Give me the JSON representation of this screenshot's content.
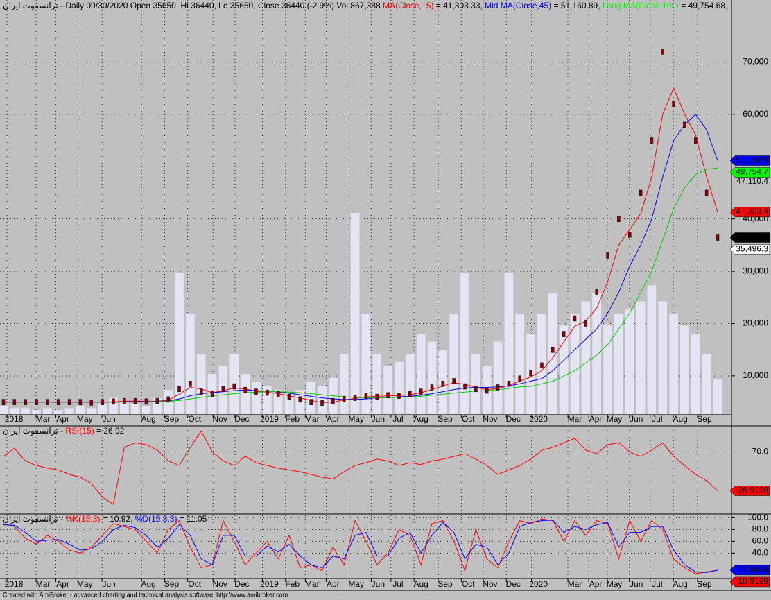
{
  "chart_data": [
    {
      "type": "line",
      "header": [
        {
          "text": "ترانسفوت ایران - Daily 09/30/2020 Open 35650, Hi 36440, Lo 35650, Close 36440 (-2.9%) Vol 867,388 ",
          "color": "#000000"
        },
        {
          "text": "MA(Close,15)",
          "color": "#ff0000"
        },
        {
          "text": " = 41,303.33, ",
          "color": "#000000"
        },
        {
          "text": "Mid MA(Close,45)",
          "color": "#0000ff"
        },
        {
          "text": " = 51,160.89, ",
          "color": "#000000"
        },
        {
          "text": "Long MA(Close,100)",
          "color": "#00ff00"
        },
        {
          "text": " = 49,754.68,",
          "color": "#000000"
        }
      ],
      "xticks": [
        {
          "value": 0.95,
          "label": "2018"
        },
        {
          "value": 3.6,
          "label": "Mar"
        },
        {
          "value": 5.4,
          "label": "Apr"
        },
        {
          "value": 7.4,
          "label": "May"
        },
        {
          "value": 9.6,
          "label": "Jun"
        },
        {
          "value": 13.2,
          "label": "Aug"
        },
        {
          "value": 15.3,
          "label": "Sep"
        },
        {
          "value": 17.4,
          "label": "Oct"
        },
        {
          "value": 19.7,
          "label": "Nov"
        },
        {
          "value": 21.7,
          "label": "Dec"
        },
        {
          "value": 24.2,
          "label": "2019"
        },
        {
          "value": 26.3,
          "label": "Feb"
        },
        {
          "value": 28.1,
          "label": "Mar"
        },
        {
          "value": 30.0,
          "label": "Apr"
        },
        {
          "value": 32.1,
          "label": "May"
        },
        {
          "value": 34.1,
          "label": "Jun"
        },
        {
          "value": 35.9,
          "label": "Jul"
        },
        {
          "value": 38.0,
          "label": "Aug"
        },
        {
          "value": 40.2,
          "label": "Sep"
        },
        {
          "value": 42.3,
          "label": "Oct"
        },
        {
          "value": 44.3,
          "label": "Nov"
        },
        {
          "value": 46.4,
          "label": "Dec"
        },
        {
          "value": 48.7,
          "label": "2020"
        },
        {
          "value": 52.0,
          "label": "Mar"
        },
        {
          "value": 53.9,
          "label": "Apr"
        },
        {
          "value": 55.6,
          "label": "May"
        },
        {
          "value": 57.6,
          "label": "Jun"
        },
        {
          "value": 59.5,
          "label": "Jul"
        },
        {
          "value": 61.6,
          "label": "Aug"
        },
        {
          "value": 63.8,
          "label": "Sep"
        }
      ],
      "xlim": [
        0,
        65
      ],
      "ylim": [
        2700,
        80000
      ],
      "yticks": [
        {
          "value": 10000,
          "label": "10,000"
        },
        {
          "value": 20000,
          "label": "20,000"
        },
        {
          "value": 30000,
          "label": "30,000"
        },
        {
          "value": 40000,
          "label": "40,000"
        },
        {
          "value": 60000,
          "label": "60,000"
        },
        {
          "value": 70000,
          "label": "70,000"
        }
      ],
      "levels": [
        {
          "value": 47110.4,
          "label": "47,110.4"
        },
        {
          "value": 35496.3,
          "label": "35,496.3"
        }
      ],
      "tags": [
        {
          "value": 51160.9,
          "label": "51,160.9",
          "color": "#0000ff"
        },
        {
          "value": 49754.7,
          "label": "49,754.7",
          "color": "#00ff00"
        },
        {
          "value": 41303.3,
          "label": "41,303.3",
          "color": "#ff0000"
        },
        {
          "value": 36440,
          "label": "36,440",
          "color": "#000000"
        },
        {
          "value": 35496.3,
          "label": "35,496.3",
          "color": "#ffffff"
        }
      ],
      "grid": true,
      "volume": {
        "color": "#e4e4f4",
        "values": [
          200000,
          150000,
          150000,
          100000,
          150000,
          100000,
          150000,
          200000,
          150000,
          250000,
          400000,
          300000,
          250000,
          200000,
          400000,
          600000,
          3500000,
          2500000,
          1500000,
          1000000,
          1200000,
          1500000,
          1000000,
          800000,
          700000,
          600000,
          500000,
          600000,
          800000,
          700000,
          900000,
          1500000,
          5000000,
          2500000,
          1500000,
          1200000,
          1300000,
          1500000,
          2000000,
          1800000,
          1600000,
          2500000,
          3500000,
          1500000,
          1200000,
          1800000,
          3500000,
          2500000,
          2000000,
          2500000,
          3000000,
          2200000,
          2500000,
          2800000,
          3000000,
          2200000,
          2500000,
          2600000,
          2800000,
          3200000,
          2800000,
          2500000,
          2200000,
          2000000,
          1500000,
          867388
        ]
      },
      "close": {
        "color": "#8b0000",
        "values": [
          5000,
          5000,
          5000,
          5000,
          5000,
          5000,
          5000,
          5000,
          4900,
          5000,
          5100,
          5200,
          5200,
          5100,
          5200,
          5500,
          7500,
          8500,
          7000,
          6500,
          7500,
          8000,
          7300,
          7000,
          6800,
          6500,
          6000,
          5500,
          5000,
          4800,
          5200,
          5600,
          5800,
          6200,
          6000,
          6300,
          6200,
          6500,
          7000,
          7800,
          8500,
          9000,
          8000,
          7500,
          7200,
          7800,
          8500,
          9500,
          10500,
          12000,
          15000,
          18000,
          21000,
          20000,
          26000,
          33000,
          40000,
          37000,
          45000,
          55000,
          72000,
          62000,
          58000,
          55000,
          45000,
          36440
        ]
      },
      "series": [
        {
          "name": "MA(Close,15)",
          "color": "#ff0000",
          "values": [
            5000,
            5000,
            5000,
            5000,
            5000,
            5000,
            5000,
            5000,
            4950,
            4980,
            5050,
            5150,
            5200,
            5150,
            5180,
            5350,
            6500,
            7800,
            7500,
            6800,
            7200,
            7700,
            7500,
            7100,
            6900,
            6600,
            6200,
            5800,
            5300,
            4900,
            5000,
            5400,
            5700,
            6000,
            6100,
            6200,
            6250,
            6400,
            6800,
            7400,
            8100,
            8700,
            8400,
            7800,
            7400,
            7600,
            8200,
            9000,
            9800,
            11000,
            13500,
            16500,
            19500,
            20500,
            23000,
            28000,
            35000,
            38000,
            41000,
            48000,
            60000,
            65000,
            60000,
            56000,
            48000,
            41303.33
          ]
        },
        {
          "name": "Mid MA(Close,45)",
          "color": "#0000ff",
          "values": [
            5000,
            5000,
            5000,
            5000,
            5000,
            5000,
            5000,
            5000,
            5000,
            5000,
            5000,
            5050,
            5100,
            5100,
            5150,
            5200,
            5600,
            6200,
            6600,
            6800,
            7000,
            7200,
            7300,
            7200,
            7100,
            6900,
            6700,
            6400,
            6100,
            5800,
            5600,
            5500,
            5500,
            5600,
            5800,
            5900,
            6000,
            6100,
            6300,
            6600,
            7000,
            7400,
            7700,
            7800,
            7800,
            7900,
            8100,
            8500,
            9000,
            9500,
            11000,
            13000,
            15000,
            17000,
            19000,
            22000,
            26000,
            31000,
            35000,
            40000,
            48000,
            55000,
            58000,
            60000,
            57000,
            51160.89
          ]
        },
        {
          "name": "Long MA(Close,100)",
          "color": "#00cc00",
          "values": [
            5000,
            5000,
            5000,
            5000,
            5000,
            5000,
            5000,
            5000,
            5000,
            5000,
            5000,
            5000,
            5000,
            5050,
            5100,
            5150,
            5300,
            5600,
            5900,
            6200,
            6400,
            6600,
            6800,
            6900,
            7000,
            7000,
            6900,
            6800,
            6600,
            6400,
            6200,
            6000,
            5900,
            5800,
            5800,
            5850,
            5900,
            6000,
            6100,
            6300,
            6500,
            6700,
            6900,
            7100,
            7200,
            7400,
            7600,
            7900,
            8000,
            8500,
            9000,
            10000,
            11000,
            12500,
            14000,
            16000,
            19000,
            22000,
            26000,
            30000,
            36000,
            42000,
            46000,
            48500,
            49500,
            49754.68
          ]
        }
      ]
    },
    {
      "type": "line",
      "header": [
        {
          "text": "ترانسفوت ایران - ",
          "color": "#000000"
        },
        {
          "text": "RSI(15)",
          "color": "#ff0000"
        },
        {
          "text": " = 26.92",
          "color": "#000000"
        }
      ],
      "xlim": [
        0,
        65
      ],
      "ylim": [
        2,
        98
      ],
      "yticks": [
        {
          "value": 70,
          "label": "70.0"
        }
      ],
      "tags": [
        {
          "value": 26.9198,
          "label": "26.9198",
          "color": "#ff0000"
        }
      ],
      "grid": true,
      "series": [
        {
          "name": "RSI(15)",
          "color": "#ff0000",
          "values": [
            65,
            74,
            60,
            55,
            52,
            50,
            45,
            42,
            35,
            20,
            12,
            75,
            80,
            78,
            72,
            60,
            55,
            75,
            93,
            70,
            60,
            55,
            65,
            58,
            55,
            52,
            50,
            48,
            45,
            42,
            40,
            48,
            55,
            58,
            62,
            60,
            55,
            58,
            56,
            60,
            62,
            65,
            68,
            62,
            55,
            45,
            50,
            55,
            62,
            72,
            75,
            80,
            85,
            72,
            68,
            78,
            80,
            70,
            65,
            72,
            80,
            65,
            55,
            45,
            38,
            26.92
          ]
        }
      ]
    },
    {
      "type": "line",
      "header": [
        {
          "text": "ترانسفوت ایران - ",
          "color": "#000000"
        },
        {
          "text": "%K(15,3)",
          "color": "#ff0000"
        },
        {
          "text": " = 10.92, ",
          "color": "#000000"
        },
        {
          "text": "%D(15,3,3)",
          "color": "#0000ff"
        },
        {
          "text": " = 11.05",
          "color": "#000000"
        }
      ],
      "xlim": [
        0,
        65
      ],
      "ylim": [
        -2,
        104
      ],
      "yticks": [
        {
          "value": 100,
          "label": "100.0"
        },
        {
          "value": 80,
          "label": "80.0"
        },
        {
          "value": 60,
          "label": "60.0"
        },
        {
          "value": 40,
          "label": "40.0"
        }
      ],
      "tags": [
        {
          "value": 11.0484,
          "label": "11.0484",
          "color": "#0000ff"
        },
        {
          "value": 10.9199,
          "label": "10.9199",
          "color": "#ff0000"
        }
      ],
      "grid": true,
      "series": [
        {
          "name": "%K(15,3)",
          "color": "#ff0000",
          "values": [
            90,
            85,
            65,
            55,
            70,
            60,
            45,
            40,
            50,
            70,
            90,
            85,
            80,
            60,
            40,
            80,
            95,
            50,
            15,
            20,
            95,
            60,
            20,
            40,
            60,
            30,
            70,
            15,
            20,
            10,
            50,
            20,
            95,
            60,
            20,
            40,
            80,
            70,
            20,
            90,
            95,
            60,
            10,
            80,
            30,
            15,
            60,
            95,
            90,
            98,
            95,
            60,
            95,
            70,
            95,
            90,
            30,
            95,
            60,
            95,
            80,
            30,
            15,
            5,
            8,
            10.92
          ]
        },
        {
          "name": "%D(15,3,3)",
          "color": "#0000ff",
          "values": [
            88,
            87,
            75,
            60,
            62,
            63,
            55,
            45,
            47,
            60,
            80,
            87,
            83,
            70,
            50,
            65,
            88,
            70,
            30,
            20,
            70,
            70,
            35,
            35,
            52,
            42,
            55,
            35,
            20,
            15,
            35,
            30,
            70,
            75,
            35,
            35,
            65,
            75,
            40,
            70,
            92,
            75,
            30,
            55,
            50,
            20,
            40,
            85,
            92,
            95,
            96,
            75,
            85,
            80,
            88,
            92,
            50,
            75,
            75,
            85,
            85,
            45,
            20,
            8,
            7,
            11.05
          ]
        }
      ]
    }
  ],
  "footer": "Created with AmiBroker - advanced charting and technical analysis software. http://www.amibroker.com"
}
